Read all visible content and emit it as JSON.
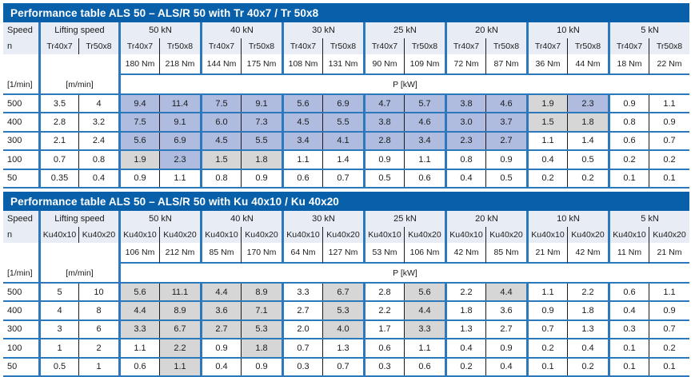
{
  "colors": {
    "title_bar_bg": "#0760A9",
    "title_text": "#FFFFFF",
    "header_bg": "#E8ECF4",
    "grid_line_blue": "#2B78BC",
    "pair_divider_black": "#1B1B1B",
    "cell_highlight_blue": "#AFBCE0",
    "cell_highlight_gray": "#D6D6D6",
    "body_text": "#1B1B1B"
  },
  "tables": [
    {
      "title": "Performance table ALS 50 – ALS/R 50 with Tr 40x7 / Tr 50x8",
      "speed_header": "Speed",
      "speed_symbol": "n",
      "speed_unit": "[1/min]",
      "lifting_header": "Lifting speed",
      "lifting_unit": "[m/min]",
      "screw_a": "Tr40x7",
      "screw_b": "Tr50x8",
      "p_label": "P [kW]",
      "load_groups": [
        {
          "load": "50 kN",
          "torque_a": "180 Nm",
          "torque_b": "218 Nm"
        },
        {
          "load": "40 kN",
          "torque_a": "144 Nm",
          "torque_b": "175 Nm"
        },
        {
          "load": "30 kN",
          "torque_a": "108 Nm",
          "torque_b": "131 Nm"
        },
        {
          "load": "25 kN",
          "torque_a": "90 Nm",
          "torque_b": "109 Nm"
        },
        {
          "load": "20 kN",
          "torque_a": "72 Nm",
          "torque_b": "87 Nm"
        },
        {
          "load": "10 kN",
          "torque_a": "36 Nm",
          "torque_b": "44 Nm"
        },
        {
          "load": "5 kN",
          "torque_a": "18 Nm",
          "torque_b": "22 Nm"
        }
      ],
      "rows": [
        {
          "speed": "500",
          "lift_a": "3.5",
          "lift_b": "4",
          "values": [
            "9.4",
            "11.4",
            "7.5",
            "9.1",
            "5.6",
            "6.9",
            "4.7",
            "5.7",
            "3.8",
            "4.6",
            "1.9",
            "2.3",
            "0.9",
            "1.1"
          ],
          "marks": [
            "b",
            "b",
            "b",
            "b",
            "b",
            "b",
            "b",
            "b",
            "b",
            "b",
            "g",
            "b",
            "w",
            "w"
          ]
        },
        {
          "speed": "400",
          "lift_a": "2.8",
          "lift_b": "3.2",
          "values": [
            "7.5",
            "9.1",
            "6.0",
            "7.3",
            "4.5",
            "5.5",
            "3.8",
            "4.6",
            "3.0",
            "3.7",
            "1.5",
            "1.8",
            "0.8",
            "0.9"
          ],
          "marks": [
            "b",
            "b",
            "b",
            "b",
            "b",
            "b",
            "b",
            "b",
            "b",
            "b",
            "g",
            "g",
            "w",
            "w"
          ]
        },
        {
          "speed": "300",
          "lift_a": "2.1",
          "lift_b": "2.4",
          "values": [
            "5.6",
            "6.9",
            "4.5",
            "5.5",
            "3.4",
            "4.1",
            "2.8",
            "3.4",
            "2.3",
            "2.7",
            "1.1",
            "1.4",
            "0.6",
            "0.7"
          ],
          "marks": [
            "b",
            "b",
            "b",
            "b",
            "b",
            "b",
            "b",
            "b",
            "b",
            "b",
            "w",
            "w",
            "w",
            "w"
          ]
        },
        {
          "speed": "100",
          "lift_a": "0.7",
          "lift_b": "0.8",
          "values": [
            "1.9",
            "2.3",
            "1.5",
            "1.8",
            "1.1",
            "1.4",
            "0.9",
            "1.1",
            "0.8",
            "0.9",
            "0.4",
            "0.5",
            "0.2",
            "0.2"
          ],
          "marks": [
            "g",
            "b",
            "g",
            "g",
            "w",
            "w",
            "w",
            "w",
            "w",
            "w",
            "w",
            "w",
            "w",
            "w"
          ]
        },
        {
          "speed": "50",
          "lift_a": "0.35",
          "lift_b": "0.4",
          "values": [
            "0.9",
            "1.1",
            "0.8",
            "0.9",
            "0.6",
            "0.7",
            "0.5",
            "0.6",
            "0.4",
            "0.5",
            "0.2",
            "0.2",
            "0.1",
            "0.1"
          ],
          "marks": [
            "w",
            "w",
            "w",
            "w",
            "w",
            "w",
            "w",
            "w",
            "w",
            "w",
            "w",
            "w",
            "w",
            "w"
          ]
        }
      ]
    },
    {
      "title": "Performance table ALS 50 – ALS/R 50 with Ku 40x10 / Ku 40x20",
      "speed_header": "Speed",
      "speed_symbol": "n",
      "speed_unit": "[1/min]",
      "lifting_header": "Lifting speed",
      "lifting_unit": "[m/min]",
      "screw_a": "Ku40x10",
      "screw_b": "Ku40x20",
      "p_label": "P [kW]",
      "load_groups": [
        {
          "load": "50 kN",
          "torque_a": "106 Nm",
          "torque_b": "212 Nm"
        },
        {
          "load": "40 kN",
          "torque_a": "85 Nm",
          "torque_b": "170 Nm"
        },
        {
          "load": "30 kN",
          "torque_a": "64 Nm",
          "torque_b": "127 Nm"
        },
        {
          "load": "25 kN",
          "torque_a": "53 Nm",
          "torque_b": "106 Nm"
        },
        {
          "load": "20 kN",
          "torque_a": "42 Nm",
          "torque_b": "85 Nm"
        },
        {
          "load": "10 kN",
          "torque_a": "21 Nm",
          "torque_b": "42 Nm"
        },
        {
          "load": "5 kN",
          "torque_a": "11 Nm",
          "torque_b": "21 Nm"
        }
      ],
      "rows": [
        {
          "speed": "500",
          "lift_a": "5",
          "lift_b": "10",
          "values": [
            "5.6",
            "11.1",
            "4.4",
            "8.9",
            "3.3",
            "6.7",
            "2.8",
            "5.6",
            "2.2",
            "4.4",
            "1.1",
            "2.2",
            "0.6",
            "1.1"
          ],
          "marks": [
            "g",
            "g",
            "g",
            "g",
            "w",
            "g",
            "w",
            "g",
            "w",
            "g",
            "w",
            "w",
            "w",
            "w"
          ]
        },
        {
          "speed": "400",
          "lift_a": "4",
          "lift_b": "8",
          "values": [
            "4.4",
            "8.9",
            "3.6",
            "7.1",
            "2.7",
            "5.3",
            "2.2",
            "4.4",
            "1.8",
            "3.6",
            "0.9",
            "1.8",
            "0.4",
            "0.9"
          ],
          "marks": [
            "g",
            "g",
            "g",
            "g",
            "w",
            "g",
            "w",
            "g",
            "w",
            "w",
            "w",
            "w",
            "w",
            "w"
          ]
        },
        {
          "speed": "300",
          "lift_a": "3",
          "lift_b": "6",
          "values": [
            "3.3",
            "6.7",
            "2.7",
            "5.3",
            "2.0",
            "4.0",
            "1.7",
            "3.3",
            "1.3",
            "2.7",
            "0.7",
            "1.3",
            "0.3",
            "0.7"
          ],
          "marks": [
            "g",
            "g",
            "g",
            "g",
            "w",
            "g",
            "w",
            "g",
            "w",
            "w",
            "w",
            "w",
            "w",
            "w"
          ]
        },
        {
          "speed": "100",
          "lift_a": "1",
          "lift_b": "2",
          "values": [
            "1.1",
            "2.2",
            "0.9",
            "1.8",
            "0.7",
            "1.3",
            "0.6",
            "1.1",
            "0.4",
            "0.9",
            "0.2",
            "0.4",
            "0.1",
            "0.2"
          ],
          "marks": [
            "w",
            "g",
            "w",
            "g",
            "w",
            "w",
            "w",
            "w",
            "w",
            "w",
            "w",
            "w",
            "w",
            "w"
          ]
        },
        {
          "speed": "50",
          "lift_a": "0.5",
          "lift_b": "1",
          "values": [
            "0.6",
            "1.1",
            "0.4",
            "0.9",
            "0.3",
            "0.7",
            "0.3",
            "0.6",
            "0.2",
            "0.4",
            "0.1",
            "0.2",
            "0.1",
            "0.1"
          ],
          "marks": [
            "w",
            "g",
            "w",
            "w",
            "w",
            "w",
            "w",
            "w",
            "w",
            "w",
            "w",
            "w",
            "w",
            "w"
          ]
        }
      ]
    }
  ]
}
